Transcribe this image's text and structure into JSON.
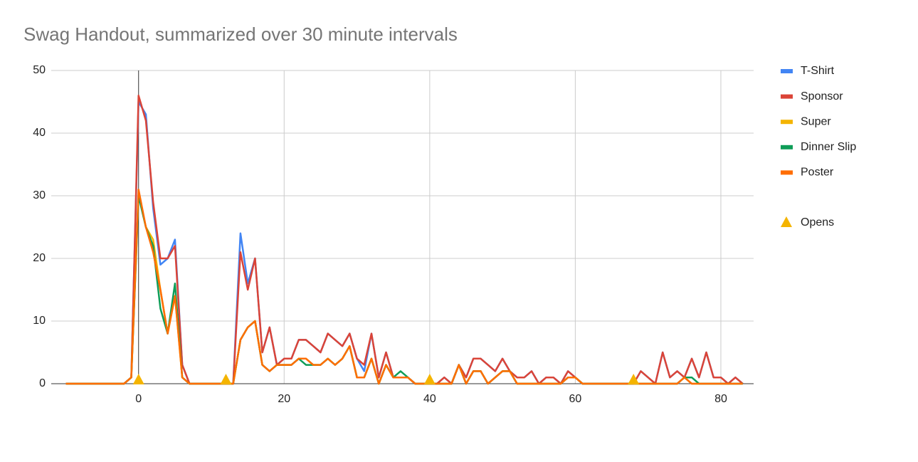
{
  "chart_data": {
    "type": "line",
    "title": "Swag Handout, summarized over 30 minute intervals",
    "x": [
      -10,
      -9,
      -8,
      -7,
      -6,
      -5,
      -4,
      -3,
      -2,
      -1,
      0,
      1,
      2,
      3,
      4,
      5,
      6,
      7,
      8,
      9,
      10,
      11,
      12,
      13,
      14,
      15,
      16,
      17,
      18,
      19,
      20,
      21,
      22,
      23,
      24,
      25,
      26,
      27,
      28,
      29,
      30,
      31,
      32,
      33,
      34,
      35,
      36,
      37,
      38,
      39,
      40,
      41,
      42,
      43,
      44,
      45,
      46,
      47,
      48,
      49,
      50,
      51,
      52,
      53,
      54,
      55,
      56,
      57,
      58,
      59,
      60,
      61,
      62,
      63,
      64,
      65,
      66,
      67,
      68,
      69,
      70,
      71,
      72,
      73,
      74,
      75,
      76,
      77,
      78,
      79,
      80,
      81,
      82,
      83
    ],
    "series": [
      {
        "name": "T-Shirt",
        "color": "#4285f4",
        "values": [
          0,
          0,
          0,
          0,
          0,
          0,
          0,
          0,
          0,
          1,
          45,
          43,
          28,
          19,
          20,
          23,
          3,
          0,
          0,
          0,
          0,
          0,
          0,
          0,
          24,
          16,
          20,
          5,
          9,
          3,
          4,
          4,
          7,
          7,
          6,
          5,
          8,
          7,
          6,
          8,
          4,
          2,
          8,
          1,
          5,
          1,
          1,
          1,
          0,
          0,
          0,
          0,
          1,
          0,
          3,
          1,
          4,
          4,
          3,
          2,
          4,
          2,
          1,
          1,
          2,
          0,
          1,
          1,
          0,
          2,
          1,
          0,
          0,
          0,
          0,
          0,
          0,
          0,
          0,
          2,
          1,
          0,
          5,
          1,
          2,
          1,
          4,
          1,
          5,
          1,
          1,
          0,
          1,
          0
        ]
      },
      {
        "name": "Sponsor",
        "color": "#db4437",
        "values": [
          0,
          0,
          0,
          0,
          0,
          0,
          0,
          0,
          0,
          1,
          46,
          42,
          29,
          20,
          20,
          22,
          3,
          0,
          0,
          0,
          0,
          0,
          0,
          0,
          21,
          15,
          20,
          5,
          9,
          3,
          4,
          4,
          7,
          7,
          6,
          5,
          8,
          7,
          6,
          8,
          4,
          3,
          8,
          1,
          5,
          1,
          1,
          1,
          0,
          0,
          0,
          0,
          1,
          0,
          3,
          1,
          4,
          4,
          3,
          2,
          4,
          2,
          1,
          1,
          2,
          0,
          1,
          1,
          0,
          2,
          1,
          0,
          0,
          0,
          0,
          0,
          0,
          0,
          0,
          2,
          1,
          0,
          5,
          1,
          2,
          1,
          4,
          1,
          5,
          1,
          1,
          0,
          1,
          0
        ]
      },
      {
        "name": "Super",
        "color": "#f4b400",
        "values": [
          0,
          0,
          0,
          0,
          0,
          0,
          0,
          0,
          0,
          1,
          30,
          25,
          23,
          15,
          8,
          14,
          1,
          0,
          0,
          0,
          0,
          0,
          0,
          0,
          7,
          9,
          10,
          3,
          2,
          3,
          3,
          3,
          4,
          4,
          3,
          3,
          4,
          3,
          4,
          6,
          1,
          1,
          4,
          0,
          3,
          1,
          1,
          1,
          0,
          0,
          0,
          0,
          0,
          0,
          3,
          0,
          2,
          2,
          0,
          1,
          2,
          2,
          0,
          0,
          0,
          0,
          0,
          0,
          0,
          1,
          1,
          0,
          0,
          0,
          0,
          0,
          0,
          0,
          0,
          0,
          0,
          0,
          0,
          0,
          0,
          1,
          0,
          0,
          0,
          0,
          0,
          0,
          0,
          0
        ]
      },
      {
        "name": "Dinner Slip",
        "color": "#0f9d58",
        "values": [
          0,
          0,
          0,
          0,
          0,
          0,
          0,
          0,
          0,
          1,
          30,
          25,
          22,
          12,
          8,
          16,
          1,
          0,
          0,
          0,
          0,
          0,
          0,
          0,
          7,
          9,
          10,
          3,
          2,
          3,
          3,
          3,
          4,
          3,
          3,
          3,
          4,
          3,
          4,
          6,
          1,
          1,
          4,
          0,
          3,
          1,
          2,
          1,
          0,
          0,
          0,
          0,
          0,
          0,
          3,
          0,
          2,
          2,
          0,
          1,
          2,
          2,
          0,
          0,
          0,
          0,
          0,
          0,
          0,
          1,
          1,
          0,
          0,
          0,
          0,
          0,
          0,
          0,
          0,
          0,
          0,
          0,
          0,
          0,
          0,
          1,
          1,
          0,
          0,
          0,
          0,
          0,
          0,
          0
        ]
      },
      {
        "name": "Poster",
        "color": "#ff6d01",
        "values": [
          0,
          0,
          0,
          0,
          0,
          0,
          0,
          0,
          0,
          1,
          31,
          25,
          21,
          15,
          8,
          14,
          1,
          0,
          0,
          0,
          0,
          0,
          0,
          0,
          7,
          9,
          10,
          3,
          2,
          3,
          3,
          3,
          4,
          4,
          3,
          3,
          4,
          3,
          4,
          6,
          1,
          1,
          4,
          0,
          3,
          1,
          1,
          1,
          0,
          0,
          0,
          0,
          0,
          0,
          3,
          0,
          2,
          2,
          0,
          1,
          2,
          2,
          0,
          0,
          0,
          0,
          0,
          0,
          0,
          1,
          1,
          0,
          0,
          0,
          0,
          0,
          0,
          0,
          0,
          0,
          0,
          0,
          0,
          0,
          0,
          1,
          0,
          0,
          0,
          0,
          0,
          0,
          0,
          0
        ]
      }
    ],
    "markers": {
      "name": "Opens",
      "color": "#f4b400",
      "x": [
        0,
        12,
        40,
        68
      ],
      "values": [
        0,
        0,
        0,
        0
      ]
    },
    "xlim": [
      -12,
      84.5
    ],
    "xticks": [
      0,
      20,
      40,
      60,
      80
    ],
    "ylim": [
      0,
      50
    ],
    "yticks": [
      0,
      10,
      20,
      30,
      40,
      50
    ],
    "grid": true,
    "legend": "right"
  }
}
